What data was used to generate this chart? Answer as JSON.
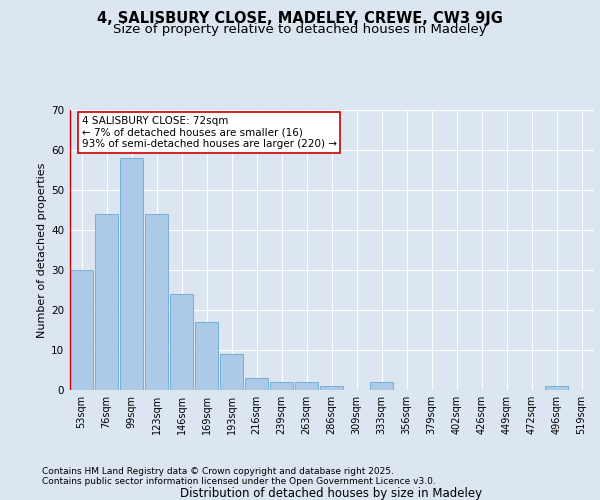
{
  "title1": "4, SALISBURY CLOSE, MADELEY, CREWE, CW3 9JG",
  "title2": "Size of property relative to detached houses in Madeley",
  "xlabel": "Distribution of detached houses by size in Madeley",
  "ylabel": "Number of detached properties",
  "categories": [
    "53sqm",
    "76sqm",
    "99sqm",
    "123sqm",
    "146sqm",
    "169sqm",
    "193sqm",
    "216sqm",
    "239sqm",
    "263sqm",
    "286sqm",
    "309sqm",
    "333sqm",
    "356sqm",
    "379sqm",
    "402sqm",
    "426sqm",
    "449sqm",
    "472sqm",
    "496sqm",
    "519sqm"
  ],
  "values": [
    30,
    44,
    58,
    44,
    24,
    17,
    9,
    3,
    2,
    2,
    1,
    0,
    2,
    0,
    0,
    0,
    0,
    0,
    0,
    1,
    0
  ],
  "bar_color": "#adc9e8",
  "bar_edge_color": "#6aaad4",
  "annotation_text": "4 SALISBURY CLOSE: 72sqm\n← 7% of detached houses are smaller (16)\n93% of semi-detached houses are larger (220) →",
  "annotation_box_color": "#ffffff",
  "annotation_box_edge": "#cc0000",
  "ylim": [
    0,
    70
  ],
  "yticks": [
    0,
    10,
    20,
    30,
    40,
    50,
    60,
    70
  ],
  "footnote1": "Contains HM Land Registry data © Crown copyright and database right 2025.",
  "footnote2": "Contains public sector information licensed under the Open Government Licence v3.0.",
  "bg_color": "#dce6f0",
  "title1_fontsize": 10.5,
  "title2_fontsize": 9.5,
  "tick_fontsize": 7,
  "ylabel_fontsize": 8,
  "xlabel_fontsize": 8.5,
  "footnote_fontsize": 6.5,
  "annotation_fontsize": 7.5
}
